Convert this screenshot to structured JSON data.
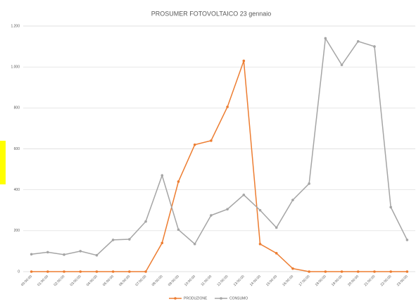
{
  "chart_data": {
    "type": "line",
    "title": "PROSUMER FOTOVOLTAICO 23 gennaio",
    "categories": [
      "00:00:00",
      "01:00:00",
      "02:00:00",
      "03:00:00",
      "04:00:00",
      "05:00:00",
      "06:00:00",
      "07:00:00",
      "08:00:00",
      "09:00:00",
      "10:00:00",
      "11:00:00",
      "12:00:00",
      "13:00:00",
      "14:00:00",
      "15:00:00",
      "16:00:00",
      "17:00:00",
      "18:00:00",
      "19:00:00",
      "20:00:00",
      "21:00:00",
      "22:00:00",
      "23:00:00"
    ],
    "series": [
      {
        "name": "PRODUZIONE",
        "color": "#ed7d31",
        "values": [
          0,
          0,
          0,
          0,
          0,
          0,
          0,
          0,
          140,
          440,
          620,
          640,
          805,
          1030,
          135,
          90,
          15,
          0,
          0,
          0,
          0,
          0,
          0,
          0
        ]
      },
      {
        "name": "CONSUMO",
        "color": "#a5a5a5",
        "values": [
          85,
          95,
          83,
          100,
          80,
          155,
          158,
          245,
          470,
          205,
          135,
          275,
          305,
          375,
          300,
          215,
          350,
          430,
          1140,
          1010,
          1125,
          1100,
          315,
          155
        ]
      }
    ],
    "ylim": [
      0,
      1200
    ],
    "yticks": [
      0,
      200,
      400,
      600,
      800,
      {
        "value": 1000,
        "label": "1.000"
      },
      {
        "value": 1200,
        "label": "1.200"
      }
    ],
    "grid": true,
    "legend": "bottom"
  }
}
